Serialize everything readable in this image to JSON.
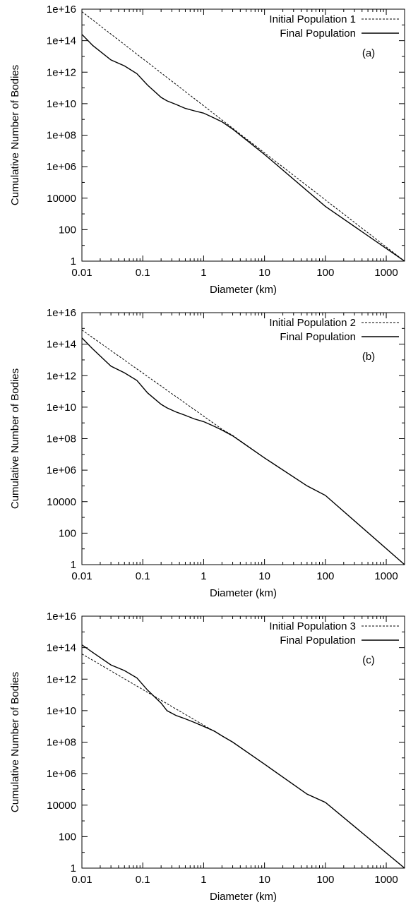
{
  "chart_data": [
    {
      "type": "line",
      "panel_label": "(a)",
      "xlabel": "Diameter (km)",
      "ylabel": "Cumulative Number of Bodies",
      "xscale": "log",
      "yscale": "log",
      "xlim": [
        0.01,
        2000
      ],
      "ylim": [
        1,
        1e+16
      ],
      "x_ticks": [
        "0.01",
        "0.1",
        "1",
        "10",
        "100",
        "1000"
      ],
      "y_ticks": [
        "1",
        "100",
        "10000",
        "1e+06",
        "1e+08",
        "1e+10",
        "1e+12",
        "1e+14",
        "1e+16"
      ],
      "grid": false,
      "legend": "top-right",
      "series": [
        {
          "name": "Initial Population 1",
          "style": "dashed",
          "points": [
            [
              0.01,
              7000000000000000.0
            ],
            [
              2000,
              1
            ]
          ]
        },
        {
          "name": "Final Population",
          "style": "solid",
          "points": [
            [
              0.01,
              250000000000000.0
            ],
            [
              0.015,
              50000000000000.0
            ],
            [
              0.03,
              6000000000000.0
            ],
            [
              0.05,
              2500000000000.0
            ],
            [
              0.08,
              800000000000.0
            ],
            [
              0.12,
              150000000000.0
            ],
            [
              0.2,
              25000000000.0
            ],
            [
              0.25,
              15000000000.0
            ],
            [
              0.35,
              9000000000.0
            ],
            [
              0.5,
              5000000000.0
            ],
            [
              0.7,
              3500000000.0
            ],
            [
              1,
              2500000000.0
            ],
            [
              1.5,
              1200000000.0
            ],
            [
              2,
              700000000.0
            ],
            [
              3,
              240000000.0
            ],
            [
              10,
              6000000.0
            ],
            [
              100,
              3000.0
            ],
            [
              2000,
              1
            ]
          ]
        }
      ]
    },
    {
      "type": "line",
      "panel_label": "(b)",
      "xlabel": "Diameter (km)",
      "ylabel": "Cumulative Number of Bodies",
      "xscale": "log",
      "yscale": "log",
      "xlim": [
        0.01,
        2000
      ],
      "ylim": [
        1,
        1e+16
      ],
      "x_ticks": [
        "0.01",
        "0.1",
        "1",
        "10",
        "100",
        "1000"
      ],
      "y_ticks": [
        "1",
        "100",
        "10000",
        "1e+06",
        "1e+08",
        "1e+10",
        "1e+12",
        "1e+14",
        "1e+16"
      ],
      "grid": false,
      "legend": "top-right",
      "series": [
        {
          "name": "Initial Population 2",
          "style": "dashed",
          "points": [
            [
              0.01,
              800000000000000.0
            ],
            [
              2,
              400000000.0
            ],
            [
              3,
              160000000.0
            ],
            [
              10,
              6000000.0
            ],
            [
              50,
              100000.0
            ],
            [
              100,
              25000.0
            ],
            [
              2000,
              1
            ]
          ]
        },
        {
          "name": "Final Population",
          "style": "solid",
          "points": [
            [
              0.01,
              250000000000000.0
            ],
            [
              0.015,
              50000000000000.0
            ],
            [
              0.03,
              4000000000000.0
            ],
            [
              0.05,
              1500000000000.0
            ],
            [
              0.08,
              500000000000.0
            ],
            [
              0.12,
              80000000000.0
            ],
            [
              0.2,
              15000000000.0
            ],
            [
              0.25,
              9000000000.0
            ],
            [
              0.35,
              5000000000.0
            ],
            [
              0.5,
              3000000000.0
            ],
            [
              0.7,
              1800000000.0
            ],
            [
              1,
              1200000000.0
            ],
            [
              1.5,
              600000000.0
            ],
            [
              2,
              350000000.0
            ],
            [
              3,
              150000000.0
            ],
            [
              10,
              6000000.0
            ],
            [
              50,
              100000.0
            ],
            [
              100,
              25000.0
            ],
            [
              2000,
              1
            ]
          ]
        }
      ]
    },
    {
      "type": "line",
      "panel_label": "(c)",
      "xlabel": "Diameter (km)",
      "ylabel": "Cumulative Number of Bodies",
      "xscale": "log",
      "yscale": "log",
      "xlim": [
        0.01,
        2000
      ],
      "ylim": [
        1,
        1e+16
      ],
      "x_ticks": [
        "0.01",
        "0.1",
        "1",
        "10",
        "100",
        "1000"
      ],
      "y_ticks": [
        "1",
        "100",
        "10000",
        "1e+06",
        "1e+08",
        "1e+10",
        "1e+12",
        "1e+14",
        "1e+16"
      ],
      "grid": false,
      "legend": "top-right",
      "series": [
        {
          "name": "Initial Population 3",
          "style": "dashed",
          "points": [
            [
              0.01,
              40000000000000.0
            ],
            [
              2,
              250000000.0
            ],
            [
              3,
              100000000.0
            ],
            [
              10,
              4000000.0
            ],
            [
              50,
              50000.0
            ],
            [
              100,
              15000.0
            ],
            [
              2000,
              1
            ]
          ]
        },
        {
          "name": "Final Population",
          "style": "solid",
          "points": [
            [
              0.01,
              150000000000000.0
            ],
            [
              0.015,
              50000000000000.0
            ],
            [
              0.03,
              8000000000000.0
            ],
            [
              0.05,
              3500000000000.0
            ],
            [
              0.08,
              1200000000000.0
            ],
            [
              0.12,
              200000000000.0
            ],
            [
              0.2,
              30000000000.0
            ],
            [
              0.25,
              10000000000.0
            ],
            [
              0.35,
              5000000000.0
            ],
            [
              0.5,
              3000000000.0
            ],
            [
              0.7,
              1800000000.0
            ],
            [
              1,
              1000000000.0
            ],
            [
              1.5,
              500000000.0
            ],
            [
              2,
              250000000.0
            ],
            [
              3,
              100000000.0
            ],
            [
              10,
              4000000.0
            ],
            [
              50,
              50000.0
            ],
            [
              100,
              15000.0
            ],
            [
              2000,
              1
            ]
          ]
        }
      ]
    }
  ]
}
